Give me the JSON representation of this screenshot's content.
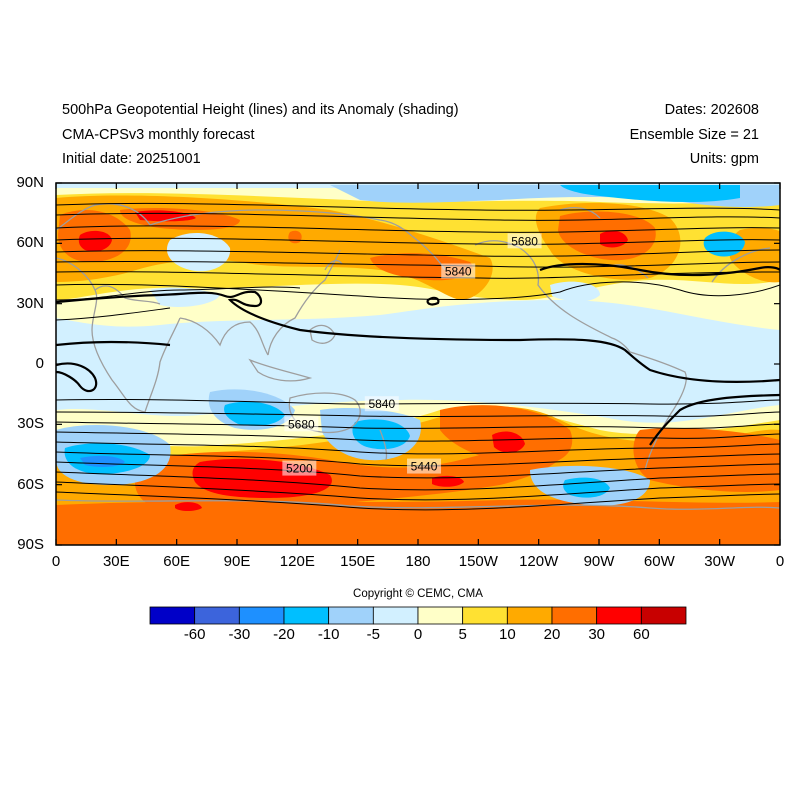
{
  "header": {
    "title": "500hPa Geopotential Height (lines) and its Anomaly (shading)",
    "subtitle": "CMA-CPSv3 monthly forecast",
    "initial_date": "Initial date: 20251001",
    "dates": "Dates: 202608",
    "ensemble": "Ensemble Size = 21",
    "units": "Units: gpm"
  },
  "map": {
    "projection": "cylindrical equidistant, 0–360E",
    "lat_ticks": [
      "90N",
      "60N",
      "30N",
      "0",
      "30S",
      "60S",
      "90S"
    ],
    "lon_ticks": [
      "0",
      "30E",
      "60E",
      "90E",
      "120E",
      "150E",
      "180",
      "150W",
      "120W",
      "90W",
      "60W",
      "30W",
      "0"
    ],
    "contour_labels": [
      {
        "text": "5680",
        "lon": 233,
        "lat": 61
      },
      {
        "text": "5840",
        "lon": 200,
        "lat": 46
      },
      {
        "text": "5840",
        "lon": 162,
        "lat": -20
      },
      {
        "text": "5680",
        "lon": 122,
        "lat": -30
      },
      {
        "text": "5200",
        "lon": 121,
        "lat": -52
      },
      {
        "text": "5440",
        "lon": 183,
        "lat": -51
      }
    ]
  },
  "colorbar": {
    "labels": [
      "-60",
      "-30",
      "-20",
      "-10",
      "-5",
      "0",
      "5",
      "10",
      "20",
      "30",
      "60"
    ],
    "colors": [
      "#0000c8",
      "#3c64dc",
      "#1e90ff",
      "#00bfff",
      "#a0d2fa",
      "#d2f0ff",
      "#ffffc8",
      "#ffe132",
      "#ffaa00",
      "#ff6e00",
      "#ff0000",
      "#c80000"
    ]
  },
  "copyright": "Copyright © CEMC, CMA"
}
